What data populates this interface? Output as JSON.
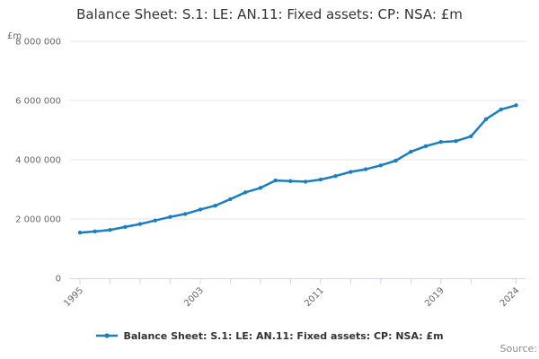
{
  "chart_data": {
    "type": "line",
    "title": "Balance Sheet: S.1: LE: AN.11: Fixed assets: CP: NSA: £m",
    "ylabel": "£m",
    "xlabel": "",
    "x": [
      1995,
      1996,
      1997,
      1998,
      1999,
      2000,
      2001,
      2002,
      2003,
      2004,
      2005,
      2006,
      2007,
      2008,
      2009,
      2010,
      2011,
      2012,
      2013,
      2014,
      2015,
      2016,
      2017,
      2018,
      2019,
      2020,
      2021,
      2022,
      2023,
      2024
    ],
    "series": [
      {
        "name": "Balance Sheet: S.1: LE: AN.11: Fixed assets: CP: NSA: £m",
        "values": [
          1540000,
          1580000,
          1630000,
          1730000,
          1830000,
          1950000,
          2070000,
          2170000,
          2320000,
          2450000,
          2670000,
          2900000,
          3050000,
          3300000,
          3280000,
          3260000,
          3330000,
          3450000,
          3590000,
          3680000,
          3810000,
          3970000,
          4270000,
          4460000,
          4600000,
          4630000,
          4790000,
          5370000,
          5700000,
          5840000
        ]
      }
    ],
    "ylim": [
      0,
      8000000
    ],
    "ytick_values": [
      0,
      2000000,
      4000000,
      6000000,
      8000000
    ],
    "ytick_labels": [
      "0",
      "2 000 000",
      "4 000 000",
      "6 000 000",
      "8 000 000"
    ],
    "xticks_all": [
      1995,
      1997,
      1999,
      2001,
      2003,
      2005,
      2007,
      2009,
      2011,
      2013,
      2015,
      2017,
      2019,
      2021,
      2024
    ],
    "xtick_labeled_years": [
      1995,
      2003,
      2011,
      2019,
      2024
    ],
    "xtick_labels": [
      "1995",
      "2003",
      "2011",
      "2019",
      "2024"
    ],
    "grid": true,
    "legend_position": "bottom"
  },
  "legend": {
    "label": "Balance Sheet: S.1: LE: AN.11: Fixed assets: CP: NSA: £m"
  },
  "source_label": "Source:",
  "colors": {
    "accent": "#1b7ebe",
    "grid": "#e6e6e6",
    "axis_line": "#ccd6eb",
    "title_text": "#333333",
    "tick_text": "#666666",
    "source_text": "#8c8c8c"
  }
}
